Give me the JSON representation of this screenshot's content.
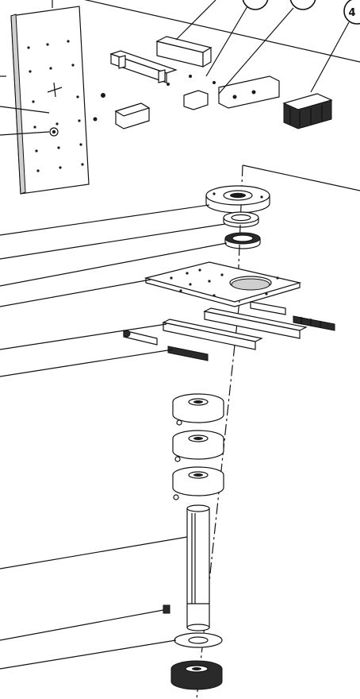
{
  "diagram": {
    "type": "exploded-assembly-drawing",
    "callout_balloons": [
      "",
      "",
      "4"
    ]
  }
}
